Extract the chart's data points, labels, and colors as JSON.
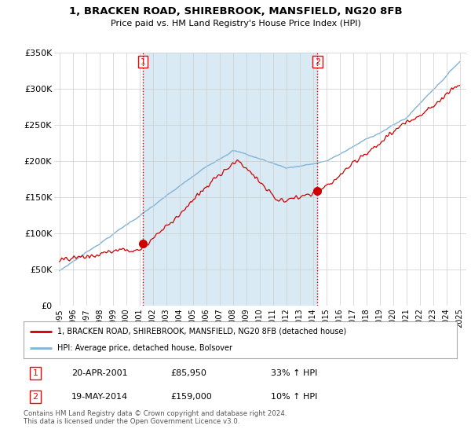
{
  "title": "1, BRACKEN ROAD, SHIREBROOK, MANSFIELD, NG20 8FB",
  "subtitle": "Price paid vs. HM Land Registry's House Price Index (HPI)",
  "ylim": [
    0,
    350000
  ],
  "yticks": [
    0,
    50000,
    100000,
    150000,
    200000,
    250000,
    300000,
    350000
  ],
  "ytick_labels": [
    "£0",
    "£50K",
    "£100K",
    "£150K",
    "£200K",
    "£250K",
    "£300K",
    "£350K"
  ],
  "hpi_color": "#7fb3d8",
  "shade_color": "#daeaf5",
  "price_color": "#cc0000",
  "vline_color": "#cc0000",
  "marker1_price": 85950,
  "marker2_price": 159000,
  "legend_property": "1, BRACKEN ROAD, SHIREBROOK, MANSFIELD, NG20 8FB (detached house)",
  "legend_hpi": "HPI: Average price, detached house, Bolsover",
  "table_row1": [
    "1",
    "20-APR-2001",
    "£85,950",
    "33% ↑ HPI"
  ],
  "table_row2": [
    "2",
    "19-MAY-2014",
    "£159,000",
    "10% ↑ HPI"
  ],
  "footnote": "Contains HM Land Registry data © Crown copyright and database right 2024.\nThis data is licensed under the Open Government Licence v3.0.",
  "background_color": "#ffffff",
  "grid_color": "#cccccc"
}
